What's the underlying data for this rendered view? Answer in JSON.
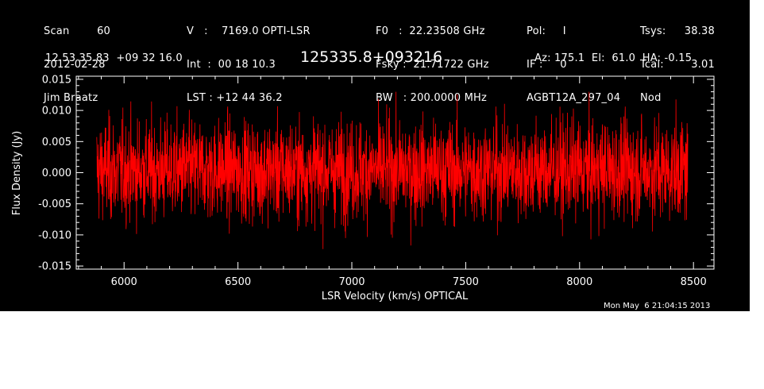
{
  "header": {
    "col1": [
      "Scan        60",
      "2012-02-28",
      "Jim Braatz"
    ],
    "col2": [
      "V   :    7169.0 OPTI-LSR",
      "Int  :  00 18 10.3",
      "LST : +12 44 36.2"
    ],
    "col3": [
      "F0   :  22.23508 GHz",
      "Fsky :  21.71722 GHz",
      "BW   : 200.0000 MHz"
    ],
    "col4": [
      "Pol:     I",
      "IF :     0",
      "AGBT12A_297_04"
    ],
    "col5_labels": [
      "Tsys:",
      "Tcal:",
      "Nod"
    ],
    "col5_values": [
      "38.38",
      "3.01",
      ""
    ],
    "coords": "12 53 35.83  +09 32 16.0",
    "source": "125335.8+093216",
    "telescope": "Az: 175.1  El:  61.0  HA: -0.15"
  },
  "timestamp": "Mon May  6 21:04:15 2013",
  "colors": {
    "background": "#000000",
    "foreground": "#ffffff",
    "series": "#ff0000"
  },
  "chart_data": {
    "type": "line",
    "xlabel": "LSR Velocity (km/s) OPTICAL",
    "ylabel": "Flux Density (Jy)",
    "xlim": [
      5790,
      8590
    ],
    "ylim": [
      -0.0155,
      0.0155
    ],
    "xticks": [
      6000,
      6500,
      7000,
      7500,
      8000,
      8500
    ],
    "xtick_labels": [
      "6000",
      "6500",
      "7000",
      "7500",
      "8000",
      "8500"
    ],
    "yticks": [
      0.015,
      0.01,
      0.005,
      0.0,
      -0.005,
      -0.01,
      -0.015
    ],
    "ytick_labels": [
      "0.015",
      "0.010",
      "0.005",
      "0.000",
      "-0.005",
      "-0.010",
      "-0.015"
    ],
    "grid": false,
    "series": [
      {
        "x_start": 5880,
        "x_end": 8475,
        "n_points": 2600,
        "mean": 0.0004,
        "rms": 0.004,
        "y_max_approx": 0.013,
        "y_min_approx": -0.0135
      }
    ]
  }
}
